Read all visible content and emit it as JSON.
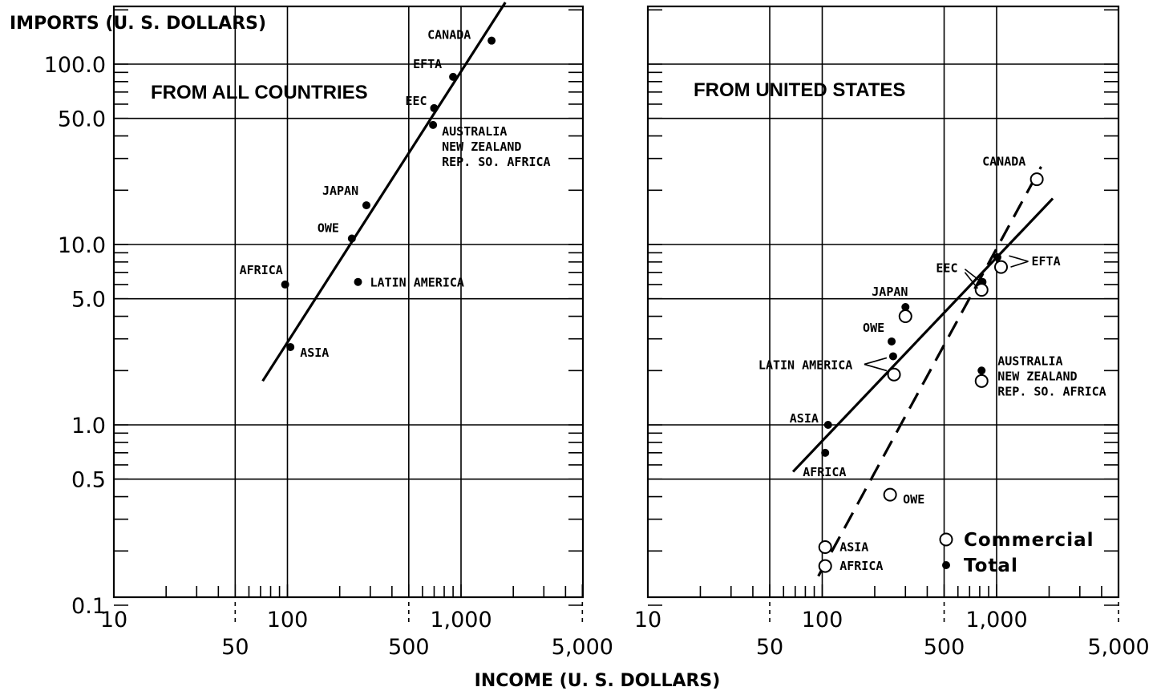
{
  "chart_data": [
    {
      "type": "scatter",
      "title": "FROM ALL COUNTRIES",
      "xlabel": "INCOME (U. S. DOLLARS)",
      "ylabel": "IMPORTS (U. S. DOLLARS)",
      "x_scale": "log",
      "y_scale": "log",
      "xlim": [
        10,
        5000
      ],
      "ylim": [
        0.1,
        200
      ],
      "x_ticklabels_upper": [
        "10",
        "100",
        "1,000"
      ],
      "x_ticklabels_lower": [
        "50",
        "500",
        "5,000"
      ],
      "y_ticklabels": [
        "100.0",
        "50.0",
        "10.0",
        "5.0",
        "1.0",
        "0.5",
        "0.1"
      ],
      "grid": true,
      "series": [
        {
          "marker": "filled",
          "points": [
            {
              "label": "CANADA",
              "x": 1500,
              "y": 135
            },
            {
              "label": "EFTA",
              "x": 900,
              "y": 85
            },
            {
              "label": "EEC",
              "x": 700,
              "y": 57
            },
            {
              "label": "AUSTRALIA\nNEW ZEALAND\nREP. SO. AFRICA",
              "x": 690,
              "y": 46
            },
            {
              "label": "JAPAN",
              "x": 285,
              "y": 16.5
            },
            {
              "label": "OWE",
              "x": 235,
              "y": 10.8
            },
            {
              "label": "LATIN AMERICA",
              "x": 255,
              "y": 6.2
            },
            {
              "label": "AFRICA",
              "x": 97,
              "y": 6.0
            },
            {
              "label": "ASIA",
              "x": 104,
              "y": 2.7
            }
          ]
        }
      ],
      "fit_lines": [
        {
          "style": "solid",
          "from": [
            72,
            1.75
          ],
          "to": [
            1800,
            220
          ]
        }
      ]
    },
    {
      "type": "scatter",
      "title": "FROM UNITED STATES",
      "x_scale": "log",
      "y_scale": "log",
      "xlim": [
        10,
        5000
      ],
      "ylim": [
        0.1,
        200
      ],
      "x_ticklabels_upper": [
        "10",
        "100",
        "1,000"
      ],
      "x_ticklabels_lower": [
        "50",
        "500",
        "5,000"
      ],
      "grid": true,
      "legend": {
        "position": "bottom-right",
        "entries": [
          "Commercial",
          "Total"
        ]
      },
      "series": [
        {
          "name": "Total",
          "marker": "filled",
          "points": [
            {
              "label": "CANADA",
              "x": 1700,
              "y": 23
            },
            {
              "label": "EFTA",
              "x": 1010,
              "y": 8.5
            },
            {
              "label": "EEC",
              "x": 830,
              "y": 6.2
            },
            {
              "label": "JAPAN",
              "x": 300,
              "y": 4.5
            },
            {
              "label": "OWE",
              "x": 250,
              "y": 2.9
            },
            {
              "label": "LATIN AMERICA",
              "x": 255,
              "y": 2.4
            },
            {
              "label": "AUSTRALIA\nNEW ZEALAND\nREP. SO. AFRICA",
              "x": 820,
              "y": 2.0
            },
            {
              "label": "ASIA",
              "x": 108,
              "y": 1.0
            },
            {
              "label": "AFRICA",
              "x": 104,
              "y": 0.7
            }
          ]
        },
        {
          "name": "Commercial",
          "marker": "open",
          "points": [
            {
              "label": "CANADA",
              "x": 1700,
              "y": 23
            },
            {
              "label": "EFTA",
              "x": 1060,
              "y": 7.5
            },
            {
              "label": "EEC",
              "x": 820,
              "y": 5.6
            },
            {
              "label": "JAPAN",
              "x": 300,
              "y": 4.0
            },
            {
              "label": "LATIN AMERICA",
              "x": 258,
              "y": 1.9
            },
            {
              "label": "AUSTRALIA\nNEW ZEALAND\nREP. SO. AFRICA",
              "x": 820,
              "y": 1.75
            },
            {
              "label": "OWE",
              "x": 245,
              "y": 0.41
            },
            {
              "label": "ASIA",
              "x": 104,
              "y": 0.21
            },
            {
              "label": "AFRICA",
              "x": 104,
              "y": 0.165
            }
          ]
        }
      ],
      "fit_lines": [
        {
          "series": "Total",
          "style": "solid",
          "from": [
            68,
            0.55
          ],
          "to": [
            2100,
            18
          ]
        },
        {
          "series": "Commercial",
          "style": "dashed",
          "from": [
            95,
            0.145
          ],
          "to": [
            1800,
            27
          ]
        }
      ]
    }
  ]
}
